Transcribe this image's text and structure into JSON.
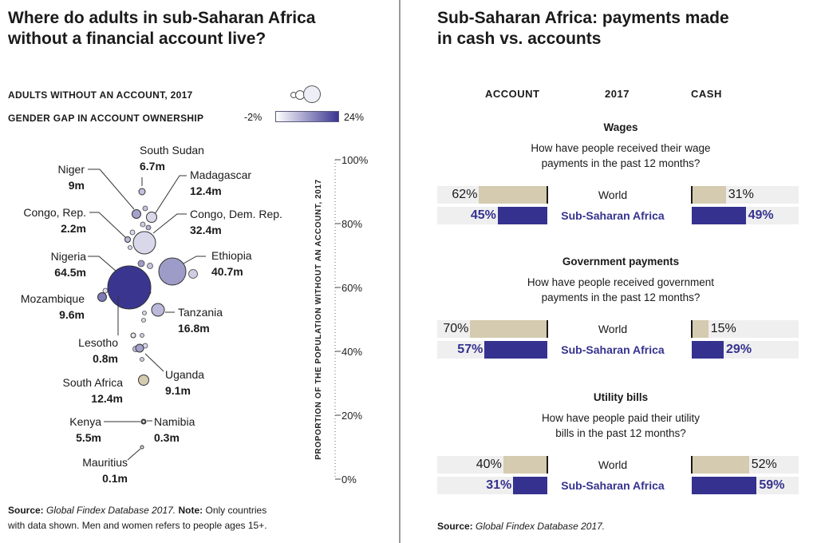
{
  "left": {
    "title_line1": "Where do adults in sub-Saharan Africa",
    "title_line2": "without a financial account live?",
    "legend_size_label": "ADULTS WITHOUT AN ACCOUNT, 2017",
    "legend_gap_label": "GENDER GAP IN ACCOUNT OWNERSHIP",
    "legend_gap_min": "-2%",
    "legend_gap_max": "24%",
    "colors": {
      "low": "#ffffff",
      "high": "#3a3690",
      "tan": "#d4cbb0"
    },
    "source_label": "Source:",
    "source_text": "Global Findex Database 2017.",
    "note_label": "Note:",
    "note_text": " Only countries",
    "note_line2": "with data shown. Men and women refers to people ages 15+."
  },
  "right": {
    "title_line1": "Sub-Saharan Africa: payments made",
    "title_line2": "in cash vs. accounts",
    "col_account": "ACCOUNT",
    "col_year": "2017",
    "col_cash": "CASH",
    "source_label": "Source:",
    "source_text": "Global Findex Database 2017."
  },
  "chart_data": [
    {
      "type": "scatter",
      "title": "Where do adults in sub-Saharan Africa without a financial account live?",
      "ylabel": "PROPORTION OF THE POPULATION WITHOUT AN ACCOUNT, 2017",
      "yticks": [
        "0%",
        "20%",
        "40%",
        "60%",
        "80%",
        "100%"
      ],
      "ylim": [
        0,
        100
      ],
      "size_legend": "ADULTS WITHOUT AN ACCOUNT, 2017",
      "color_legend": "GENDER GAP IN ACCOUNT OWNERSHIP",
      "color_range": [
        -2,
        24
      ],
      "labeled_countries": [
        {
          "name": "South Sudan",
          "value": "6.7m",
          "y": 90,
          "gap": 6
        },
        {
          "name": "Niger",
          "value": "9m",
          "y": 83,
          "gap": 10
        },
        {
          "name": "Madagascar",
          "value": "12.4m",
          "y": 82,
          "gap": 3
        },
        {
          "name": "Congo, Rep.",
          "value": "2.2m",
          "y": 75,
          "gap": 7
        },
        {
          "name": "Congo, Dem. Rep.",
          "value": "32.4m",
          "y": 74,
          "gap": 3
        },
        {
          "name": "Nigeria",
          "value": "64.5m",
          "y": 60,
          "gap": 24
        },
        {
          "name": "Ethiopia",
          "value": "40.7m",
          "y": 65,
          "gap": 11
        },
        {
          "name": "Mozambique",
          "value": "9.6m",
          "y": 57,
          "gap": 15
        },
        {
          "name": "Tanzania",
          "value": "16.8m",
          "y": 53,
          "gap": 7
        },
        {
          "name": "Lesotho",
          "value": "0.8m",
          "y": 45,
          "gap": 1
        },
        {
          "name": "Uganda",
          "value": "9.1m",
          "y": 41,
          "gap": 10
        },
        {
          "name": "South Africa",
          "value": "12.4m",
          "y": 31,
          "gap": -2
        },
        {
          "name": "Kenya",
          "value": "5.5m",
          "y": 18,
          "gap": 6
        },
        {
          "name": "Namibia",
          "value": "0.3m",
          "y": 18,
          "gap": 2
        },
        {
          "name": "Mauritius",
          "value": "0.1m",
          "y": 10,
          "gap": 2
        }
      ]
    },
    {
      "type": "bar",
      "title": "Sub-Saharan Africa: payments made in cash vs. accounts",
      "columns": [
        "ACCOUNT",
        "2017",
        "CASH"
      ],
      "sections": [
        {
          "title": "Wages",
          "question_line1": "How have people received their wage",
          "question_line2": "payments in the past 12 months?",
          "rows": [
            {
              "label": "World",
              "account": 62,
              "cash": 31,
              "account_label": "62%",
              "cash_label": "31%"
            },
            {
              "label": "Sub-Saharan Africa",
              "account": 45,
              "cash": 49,
              "account_label": "45%",
              "cash_label": "49%"
            }
          ]
        },
        {
          "title": "Government payments",
          "question_line1": "How have people received government",
          "question_line2": "payments in the past 12 months?",
          "rows": [
            {
              "label": "World",
              "account": 70,
              "cash": 15,
              "account_label": "70%",
              "cash_label": "15%"
            },
            {
              "label": "Sub-Saharan Africa",
              "account": 57,
              "cash": 29,
              "account_label": "57%",
              "cash_label": "29%"
            }
          ]
        },
        {
          "title": "Utility bills",
          "question_line1": "How have people paid their utility",
          "question_line2": "bills in the past 12 months?",
          "rows": [
            {
              "label": "World",
              "account": 40,
              "cash": 52,
              "account_label": "40%",
              "cash_label": "52%"
            },
            {
              "label": "Sub-Saharan Africa",
              "account": 31,
              "cash": 59,
              "account_label": "31%",
              "cash_label": "59%"
            }
          ]
        }
      ]
    }
  ]
}
